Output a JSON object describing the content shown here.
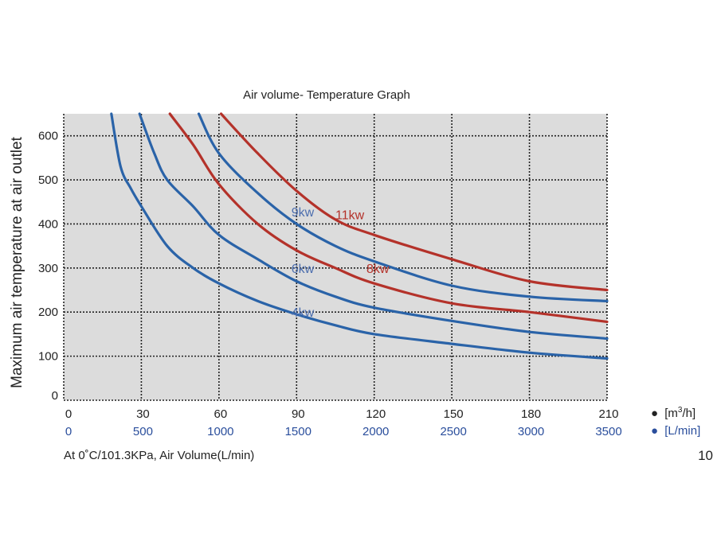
{
  "chart_data": {
    "type": "line",
    "title": "Air volume- Temperature Graph",
    "ylabel": "Maximum air temperature at air outlet",
    "footnote": "At 0˚C/101.3KPa,  Air Volume(L/min)",
    "page_number": "10",
    "x_units": {
      "m3h": {
        "label_prefix": "[m",
        "label_sup": "3",
        "label_suffix": "/h]",
        "bullet": "●",
        "color": "#111111"
      },
      "lmin": {
        "label": "[L/min]",
        "bullet": "●",
        "color": "#2a4e9c"
      }
    },
    "x_ticks_m3h": [
      "0",
      "30",
      "60",
      "90",
      "120",
      "150",
      "180",
      "210"
    ],
    "x_ticks_lmin": [
      "0",
      "500",
      "1000",
      "1500",
      "2000",
      "2500",
      "3000",
      "3500"
    ],
    "y_ticks": [
      "0",
      "100",
      "200",
      "300",
      "400",
      "500",
      "600"
    ],
    "xlim": [
      0,
      210
    ],
    "ylim": [
      0,
      650
    ],
    "grid": true,
    "background": "#dcdcdc",
    "series": [
      {
        "name": "4kw",
        "color": "#2a63a8",
        "label_color": "#4c6eae",
        "label_at": [
          88,
          200
        ],
        "x": [
          18.4,
          22,
          26,
          30,
          40,
          50,
          60,
          75,
          90,
          105,
          120,
          150,
          180,
          210
        ],
        "y": [
          650,
          530,
          480,
          440,
          350,
          300,
          265,
          225,
          195,
          170,
          150,
          128,
          108,
          95
        ]
      },
      {
        "name": "6kw",
        "color": "#2a63a8",
        "label_color": "#4c6eae",
        "label_at": [
          88,
          300
        ],
        "x": [
          29.3,
          35,
          40,
          50,
          60,
          75,
          90,
          105,
          120,
          150,
          180,
          210
        ],
        "y": [
          650,
          560,
          500,
          440,
          375,
          320,
          270,
          235,
          210,
          180,
          155,
          140
        ]
      },
      {
        "name": "8kw",
        "color": "#b4322a",
        "label_color": "#b4322a",
        "label_at": [
          117,
          300
        ],
        "x": [
          41,
          50,
          60,
          75,
          90,
          105,
          120,
          150,
          180,
          210
        ],
        "y": [
          650,
          580,
          490,
          400,
          340,
          300,
          265,
          220,
          200,
          178
        ]
      },
      {
        "name": "9kw",
        "color": "#2a63a8",
        "label_color": "#4c6eae",
        "label_at": [
          88,
          428
        ],
        "x": [
          52.2,
          60,
          75,
          90,
          105,
          120,
          150,
          180,
          210
        ],
        "y": [
          650,
          560,
          470,
          400,
          350,
          315,
          260,
          235,
          225
        ]
      },
      {
        "name": "11kw",
        "color": "#b4322a",
        "label_color": "#b4322a",
        "label_at": [
          105,
          422
        ],
        "x": [
          60.8,
          75,
          90,
          105,
          120,
          150,
          180,
          210
        ],
        "y": [
          650,
          560,
          475,
          410,
          375,
          320,
          270,
          250
        ]
      }
    ]
  }
}
